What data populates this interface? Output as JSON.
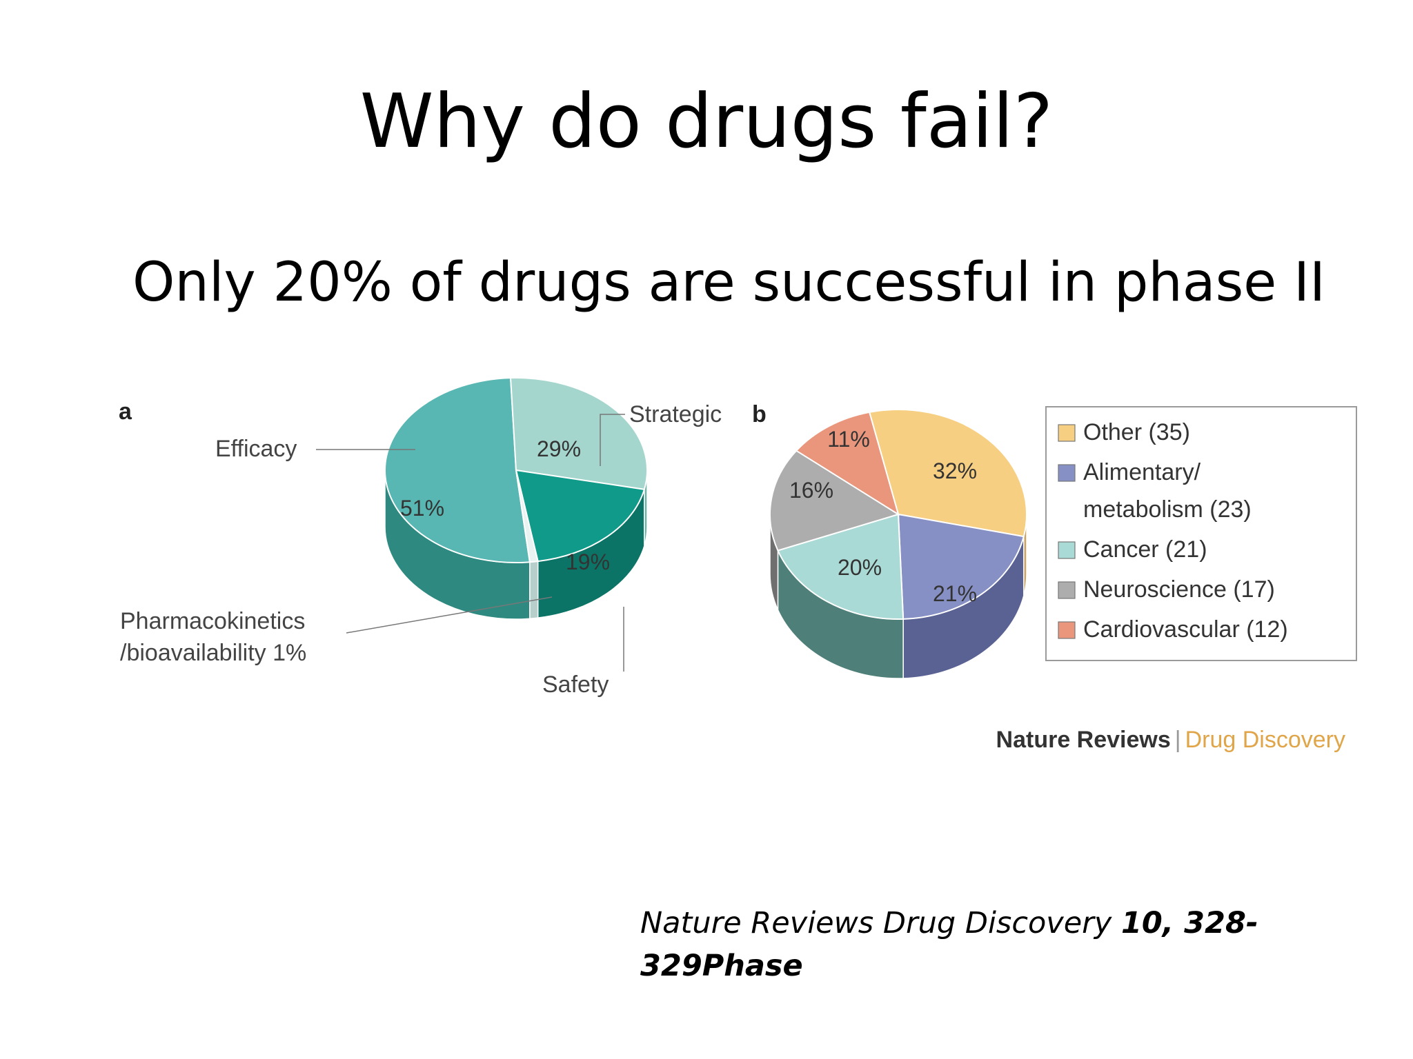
{
  "slide": {
    "title": "Why do drugs fail?",
    "subtitle": "Only 20% of drugs are successful in phase II"
  },
  "citation": {
    "journal": "Nature Reviews Drug Discovery",
    "reference": "10, 328-329Phase"
  },
  "figure_credit": {
    "publisher": "Nature Reviews",
    "separator": "|",
    "journal": "Drug Discovery",
    "journal_color": "#e0a548"
  },
  "chart_data": [
    {
      "type": "pie",
      "panel_label": "a",
      "title": "",
      "slices": [
        {
          "name": "Efficacy",
          "value": 51,
          "label": "51%",
          "color": "#58b7b2",
          "side_color": "#2e8a80"
        },
        {
          "name": "Strategic",
          "value": 29,
          "label": "29%",
          "color": "#a5d6cd",
          "side_color": "#6fb1a6"
        },
        {
          "name": "Safety",
          "value": 19,
          "label": "19%",
          "color": "#0f9a89",
          "side_color": "#0b7466"
        },
        {
          "name": "Pharmacokinetics /bioavailability",
          "value": 1,
          "label": "1%",
          "color": "#e9f4f2",
          "side_color": "#b7cfcb"
        }
      ],
      "callouts": {
        "efficacy": "Efficacy",
        "strategic": "Strategic",
        "safety": "Safety",
        "pk_line1": "Pharmacokinetics",
        "pk_line2": "/bioavailability  1%"
      }
    },
    {
      "type": "pie",
      "panel_label": "b",
      "title": "",
      "slices": [
        {
          "name": "Other",
          "value": 32,
          "label": "32%",
          "count": 35,
          "color": "#f7cf82",
          "side_color": "#c9a264"
        },
        {
          "name": "Alimentary/ metabolism",
          "value": 21,
          "label": "21%",
          "count": 23,
          "color": "#8690c4",
          "side_color": "#5a6294"
        },
        {
          "name": "Cancer",
          "value": 20,
          "label": "20%",
          "count": 21,
          "color": "#a9dad5",
          "side_color": "#4f7f79"
        },
        {
          "name": "Neuroscience",
          "value": 16,
          "label": "16%",
          "count": 17,
          "color": "#adadad",
          "side_color": "#6f6f6f"
        },
        {
          "name": "Cardiovascular",
          "value": 11,
          "label": "11%",
          "count": 12,
          "color": "#ea967c",
          "side_color": "#b56a55"
        }
      ],
      "legend": {
        "placement": "right",
        "entries": [
          {
            "line1": "Other (35)",
            "line2": "",
            "color": "#f7cf82"
          },
          {
            "line1": "Alimentary/",
            "line2": "metabolism (23)",
            "color": "#8690c4"
          },
          {
            "line1": "Cancer (21)",
            "line2": "",
            "color": "#a9dad5"
          },
          {
            "line1": "Neuroscience (17)",
            "line2": "",
            "color": "#adadad"
          },
          {
            "line1": "Cardiovascular (12)",
            "line2": "",
            "color": "#ea967c"
          }
        ]
      }
    }
  ]
}
